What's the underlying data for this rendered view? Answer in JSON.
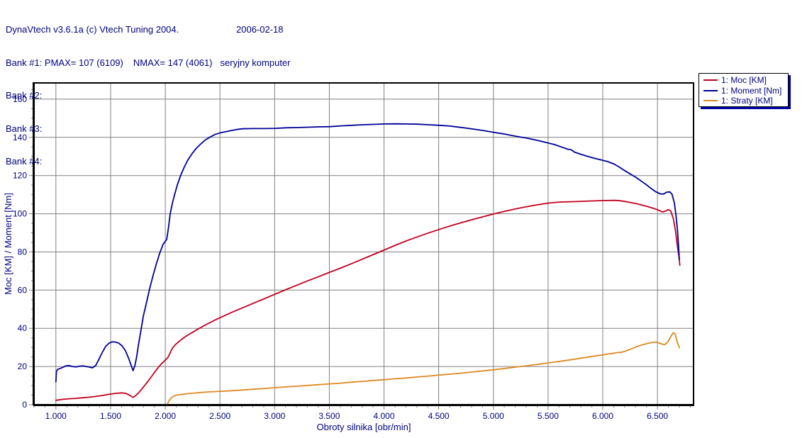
{
  "header": {
    "title": "DynaVtech v3.6.1a (c) Vtech Tuning 2004.",
    "date": "2006-02-18",
    "bank1_main": "Bank #1: PMAX= 107 (6109)",
    "bank1_nmax": "NMAX= 147 (4061)",
    "bank1_note": "seryjny komputer",
    "bank2": "Bank #2:",
    "bank3": "Bank #3:",
    "bank4": "Bank #4:"
  },
  "colors": {
    "text": "#000080",
    "grid": "#808080",
    "axis": "#000000",
    "legend_shadow": "#0000a8"
  },
  "chart_data": {
    "type": "line",
    "title": "",
    "xlabel": "Obroty silnika [obr/min]",
    "ylabel": "Moc [KM] / Moment [Nm]",
    "xlim": [
      800,
      6830
    ],
    "ylim": [
      0,
      168.5
    ],
    "grid": true,
    "legend_position": "top-right",
    "x_minor_step": 100,
    "y_minor_step": 5,
    "x_ticks": [
      {
        "v": 1000,
        "label": "1.000"
      },
      {
        "v": 1500,
        "label": "1.500"
      },
      {
        "v": 2000,
        "label": "2.000"
      },
      {
        "v": 2500,
        "label": "2.500"
      },
      {
        "v": 3000,
        "label": "3.000"
      },
      {
        "v": 3500,
        "label": "3.500"
      },
      {
        "v": 4000,
        "label": "4.000"
      },
      {
        "v": 4500,
        "label": "4.500"
      },
      {
        "v": 5000,
        "label": "5.000"
      },
      {
        "v": 5500,
        "label": "5.500"
      },
      {
        "v": 6000,
        "label": "6.000"
      },
      {
        "v": 6500,
        "label": "6.500"
      }
    ],
    "y_ticks": [
      {
        "v": 0,
        "label": "0"
      },
      {
        "v": 20,
        "label": "20"
      },
      {
        "v": 40,
        "label": "40"
      },
      {
        "v": 60,
        "label": "60"
      },
      {
        "v": 80,
        "label": "80"
      },
      {
        "v": 100,
        "label": "100"
      },
      {
        "v": 120,
        "label": "120"
      },
      {
        "v": 140,
        "label": "140"
      },
      {
        "v": 160,
        "label": "160"
      }
    ],
    "series": [
      {
        "key": "moc",
        "name": "1: Moc [KM]",
        "color": "#c00020",
        "peak_note": "PMAX= 107 (6109)",
        "points": [
          [
            1000,
            2.3
          ],
          [
            1060,
            2.8
          ],
          [
            1120,
            3.1
          ],
          [
            1180,
            3.3
          ],
          [
            1240,
            3.6
          ],
          [
            1300,
            3.9
          ],
          [
            1360,
            4.3
          ],
          [
            1420,
            4.8
          ],
          [
            1480,
            5.4
          ],
          [
            1540,
            5.9
          ],
          [
            1600,
            6.2
          ],
          [
            1640,
            5.9
          ],
          [
            1675,
            4.9
          ],
          [
            1705,
            3.8
          ],
          [
            1725,
            4.6
          ],
          [
            1755,
            6.2
          ],
          [
            1785,
            8.2
          ],
          [
            1815,
            10.3
          ],
          [
            1845,
            12.5
          ],
          [
            1875,
            14.8
          ],
          [
            1905,
            17.2
          ],
          [
            1935,
            19.4
          ],
          [
            1965,
            21.4
          ],
          [
            2000,
            23.4
          ],
          [
            2025,
            24.8
          ],
          [
            2045,
            27.2
          ],
          [
            2065,
            29.6
          ],
          [
            2095,
            31.6
          ],
          [
            2125,
            33.1
          ],
          [
            2165,
            34.9
          ],
          [
            2205,
            36.4
          ],
          [
            2255,
            38.1
          ],
          [
            2305,
            39.8
          ],
          [
            2355,
            41.4
          ],
          [
            2405,
            42.9
          ],
          [
            2455,
            44.3
          ],
          [
            2505,
            45.7
          ],
          [
            2555,
            47
          ],
          [
            2605,
            48.3
          ],
          [
            2655,
            49.5
          ],
          [
            2705,
            50.7
          ],
          [
            2755,
            51.9
          ],
          [
            2805,
            53.1
          ],
          [
            2855,
            54.3
          ],
          [
            2905,
            55.5
          ],
          [
            2955,
            56.7
          ],
          [
            3005,
            57.9
          ],
          [
            3105,
            60.3
          ],
          [
            3205,
            62.6
          ],
          [
            3305,
            64.9
          ],
          [
            3405,
            67.1
          ],
          [
            3505,
            69.4
          ],
          [
            3605,
            71.6
          ],
          [
            3705,
            73.9
          ],
          [
            3805,
            76.3
          ],
          [
            3905,
            78.7
          ],
          [
            4005,
            81.1
          ],
          [
            4105,
            83.5
          ],
          [
            4205,
            85.8
          ],
          [
            4305,
            87.9
          ],
          [
            4405,
            89.9
          ],
          [
            4505,
            91.8
          ],
          [
            4605,
            93.6
          ],
          [
            4705,
            95.3
          ],
          [
            4805,
            96.9
          ],
          [
            4905,
            98.4
          ],
          [
            5005,
            99.9
          ],
          [
            5105,
            101.3
          ],
          [
            5205,
            102.6
          ],
          [
            5305,
            103.7
          ],
          [
            5405,
            104.7
          ],
          [
            5505,
            105.6
          ],
          [
            5605,
            106.1
          ],
          [
            5705,
            106.3
          ],
          [
            5805,
            106.5
          ],
          [
            5905,
            106.7
          ],
          [
            6005,
            106.9
          ],
          [
            6109,
            107
          ],
          [
            6155,
            106.8
          ],
          [
            6205,
            106.4
          ],
          [
            6255,
            105.9
          ],
          [
            6305,
            105.3
          ],
          [
            6355,
            104.6
          ],
          [
            6405,
            103.8
          ],
          [
            6455,
            103
          ],
          [
            6505,
            102
          ],
          [
            6545,
            100.9
          ],
          [
            6575,
            101.4
          ],
          [
            6600,
            102.2
          ],
          [
            6622,
            101.4
          ],
          [
            6645,
            97.5
          ],
          [
            6665,
            91
          ],
          [
            6680,
            84
          ],
          [
            6695,
            78
          ],
          [
            6705,
            73
          ]
        ]
      },
      {
        "key": "moment",
        "name": "1: Moment [Nm]",
        "color": "#000099",
        "peak_note": "NMAX= 147 (4061)",
        "points": [
          [
            1000,
            12
          ],
          [
            1005,
            17.5
          ],
          [
            1015,
            18.5
          ],
          [
            1040,
            19
          ],
          [
            1065,
            19.6
          ],
          [
            1090,
            20.3
          ],
          [
            1120,
            20.5
          ],
          [
            1150,
            20
          ],
          [
            1185,
            19.8
          ],
          [
            1215,
            20.2
          ],
          [
            1245,
            20.3
          ],
          [
            1275,
            20
          ],
          [
            1305,
            19.7
          ],
          [
            1335,
            19.3
          ],
          [
            1365,
            20.6
          ],
          [
            1395,
            24
          ],
          [
            1425,
            27.5
          ],
          [
            1455,
            30.5
          ],
          [
            1485,
            32.2
          ],
          [
            1515,
            32.9
          ],
          [
            1545,
            32.8
          ],
          [
            1575,
            32.2
          ],
          [
            1605,
            30.8
          ],
          [
            1635,
            28.3
          ],
          [
            1665,
            24.3
          ],
          [
            1688,
            20.5
          ],
          [
            1705,
            17.8
          ],
          [
            1722,
            20.5
          ],
          [
            1738,
            25
          ],
          [
            1755,
            31.5
          ],
          [
            1778,
            39
          ],
          [
            1800,
            46.5
          ],
          [
            1830,
            54
          ],
          [
            1860,
            61.5
          ],
          [
            1890,
            68
          ],
          [
            1920,
            74
          ],
          [
            1950,
            79.5
          ],
          [
            1980,
            84
          ],
          [
            2013,
            86.5
          ],
          [
            2030,
            93
          ],
          [
            2045,
            100
          ],
          [
            2065,
            105.5
          ],
          [
            2085,
            110
          ],
          [
            2110,
            115
          ],
          [
            2140,
            120
          ],
          [
            2170,
            124
          ],
          [
            2205,
            128
          ],
          [
            2245,
            131.5
          ],
          [
            2285,
            134.3
          ],
          [
            2325,
            136.6
          ],
          [
            2365,
            138.6
          ],
          [
            2405,
            140
          ],
          [
            2455,
            141.5
          ],
          [
            2505,
            142.4
          ],
          [
            2555,
            143
          ],
          [
            2605,
            143.6
          ],
          [
            2655,
            144.1
          ],
          [
            2705,
            144.5
          ],
          [
            2805,
            144.6
          ],
          [
            2905,
            144.6
          ],
          [
            3005,
            144.7
          ],
          [
            3105,
            145
          ],
          [
            3205,
            145.1
          ],
          [
            3305,
            145.3
          ],
          [
            3405,
            145.5
          ],
          [
            3505,
            145.6
          ],
          [
            3605,
            146
          ],
          [
            3705,
            146.3
          ],
          [
            3805,
            146.6
          ],
          [
            3905,
            146.8
          ],
          [
            4005,
            147
          ],
          [
            4105,
            147.1
          ],
          [
            4205,
            147
          ],
          [
            4305,
            146.9
          ],
          [
            4405,
            146.6
          ],
          [
            4505,
            146.3
          ],
          [
            4605,
            145.9
          ],
          [
            4705,
            145.2
          ],
          [
            4805,
            144.4
          ],
          [
            4905,
            143.6
          ],
          [
            5005,
            142.6
          ],
          [
            5105,
            141.7
          ],
          [
            5205,
            140.6
          ],
          [
            5305,
            139.6
          ],
          [
            5405,
            138.4
          ],
          [
            5505,
            137
          ],
          [
            5560,
            136.2
          ],
          [
            5620,
            135
          ],
          [
            5680,
            133.8
          ],
          [
            5710,
            133.5
          ],
          [
            5740,
            132.3
          ],
          [
            5805,
            131
          ],
          [
            5865,
            130
          ],
          [
            5925,
            129
          ],
          [
            5985,
            128.2
          ],
          [
            6045,
            127.3
          ],
          [
            6105,
            126
          ],
          [
            6155,
            124.3
          ],
          [
            6205,
            122.4
          ],
          [
            6255,
            120.7
          ],
          [
            6305,
            119
          ],
          [
            6355,
            117
          ],
          [
            6405,
            114.9
          ],
          [
            6445,
            113.1
          ],
          [
            6485,
            111.5
          ],
          [
            6525,
            110.4
          ],
          [
            6555,
            110.3
          ],
          [
            6585,
            111.3
          ],
          [
            6615,
            111.4
          ],
          [
            6635,
            110
          ],
          [
            6655,
            105.5
          ],
          [
            6670,
            99
          ],
          [
            6682,
            92
          ],
          [
            6692,
            84
          ],
          [
            6700,
            76
          ]
        ]
      },
      {
        "key": "straty",
        "name": "1: Straty [KM]",
        "color": "#dd8a22",
        "peak_note": "",
        "points": [
          [
            2020,
            0.5
          ],
          [
            2035,
            2.2
          ],
          [
            2052,
            3.4
          ],
          [
            2072,
            4.3
          ],
          [
            2095,
            4.9
          ],
          [
            2125,
            5.2
          ],
          [
            2165,
            5.5
          ],
          [
            2205,
            5.8
          ],
          [
            2265,
            6.1
          ],
          [
            2325,
            6.4
          ],
          [
            2405,
            6.7
          ],
          [
            2505,
            7
          ],
          [
            2605,
            7.3
          ],
          [
            2705,
            7.7
          ],
          [
            2805,
            8.1
          ],
          [
            2905,
            8.5
          ],
          [
            3005,
            8.9
          ],
          [
            3105,
            9.3
          ],
          [
            3205,
            9.7
          ],
          [
            3305,
            10.1
          ],
          [
            3405,
            10.5
          ],
          [
            3505,
            10.9
          ],
          [
            3605,
            11.3
          ],
          [
            3705,
            11.8
          ],
          [
            3805,
            12.2
          ],
          [
            3905,
            12.7
          ],
          [
            4005,
            13.1
          ],
          [
            4105,
            13.6
          ],
          [
            4205,
            14
          ],
          [
            4305,
            14.5
          ],
          [
            4405,
            15
          ],
          [
            4505,
            15.5
          ],
          [
            4605,
            16
          ],
          [
            4705,
            16.5
          ],
          [
            4805,
            17.1
          ],
          [
            4905,
            17.7
          ],
          [
            5005,
            18.3
          ],
          [
            5105,
            19
          ],
          [
            5205,
            19.7
          ],
          [
            5305,
            20.4
          ],
          [
            5405,
            21.1
          ],
          [
            5505,
            21.9
          ],
          [
            5605,
            22.7
          ],
          [
            5705,
            23.5
          ],
          [
            5805,
            24.4
          ],
          [
            5905,
            25.3
          ],
          [
            6005,
            26.1
          ],
          [
            6055,
            26.6
          ],
          [
            6105,
            27
          ],
          [
            6135,
            27.3
          ],
          [
            6165,
            27.4
          ],
          [
            6205,
            28
          ],
          [
            6255,
            29.1
          ],
          [
            6305,
            30.3
          ],
          [
            6355,
            31.3
          ],
          [
            6405,
            32
          ],
          [
            6445,
            32.5
          ],
          [
            6485,
            32.8
          ],
          [
            6525,
            32.1
          ],
          [
            6562,
            31.4
          ],
          [
            6592,
            32.6
          ],
          [
            6620,
            35.5
          ],
          [
            6645,
            37.8
          ],
          [
            6662,
            36.8
          ],
          [
            6680,
            33
          ],
          [
            6700,
            29.8
          ]
        ]
      }
    ]
  }
}
